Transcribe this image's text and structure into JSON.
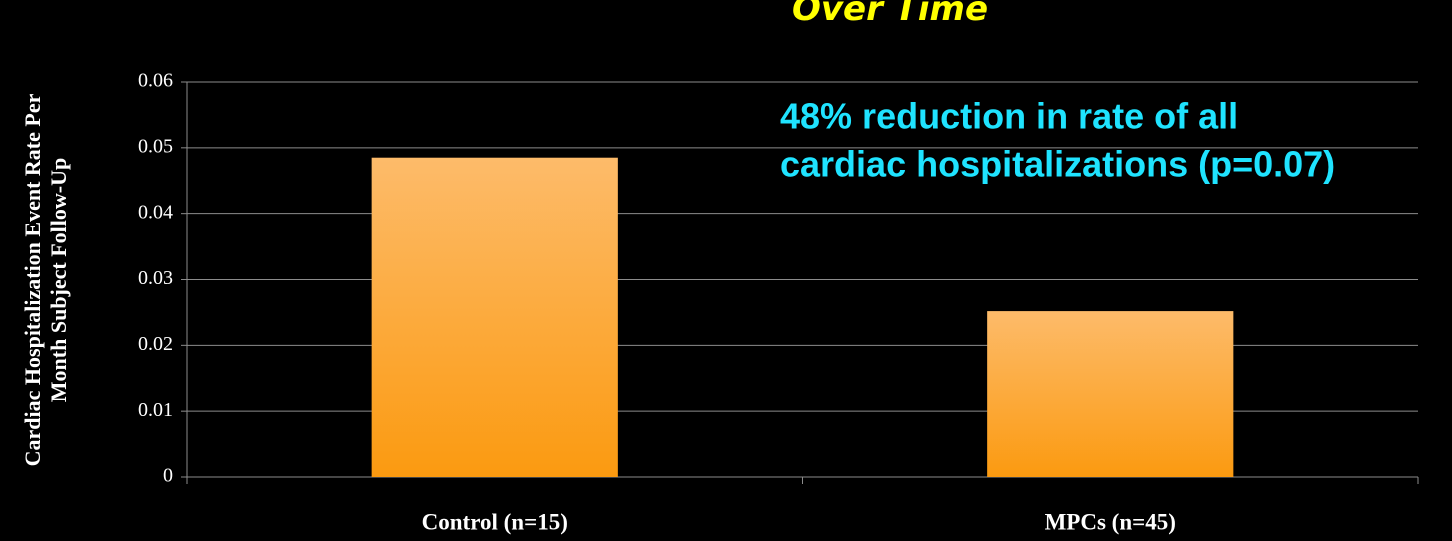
{
  "chart_data": {
    "type": "bar",
    "title": "Over Time",
    "y_label": [
      "Cardiac Hospitalization Event Rate Per",
      "Month Subject Follow-Up"
    ],
    "categories": [
      "Control (n=15)",
      "MPCs (n=45)"
    ],
    "values": [
      0.0485,
      0.0252
    ],
    "color": "#fdbb6a",
    "ylim": [
      0,
      0.06
    ],
    "yticks": [
      0,
      0.01,
      0.02,
      0.03,
      0.04,
      0.05,
      0.06
    ],
    "grid": true,
    "annotation": [
      "48% reduction in rate of all",
      "cardiac hospitalizations (p=0.07)"
    ]
  }
}
